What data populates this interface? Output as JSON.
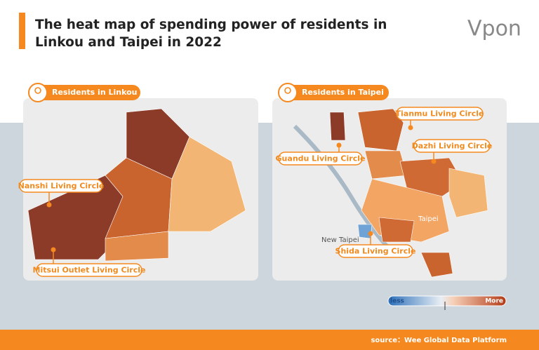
{
  "header": {
    "title_lines": [
      "The heat map of spending power of residents in",
      "Linkou and Taipei in 2022"
    ],
    "logo": "Vpon"
  },
  "panels": [
    {
      "label": "Residents in Linkou",
      "callouts": [
        "Nanshi Living Circle",
        "Mitsui Outlet Living Circle"
      ]
    },
    {
      "label": "Residents in Taipei",
      "callouts": [
        "Tianmu Living Circle",
        "Dazhi Living Circle",
        "Guandu Living Circle",
        "Shida Living Circle"
      ],
      "places": [
        "New Taipei",
        "Taipei"
      ]
    }
  ],
  "legend": {
    "low": "less",
    "high": "More"
  },
  "source": "source：Wee Global Data Platform"
}
